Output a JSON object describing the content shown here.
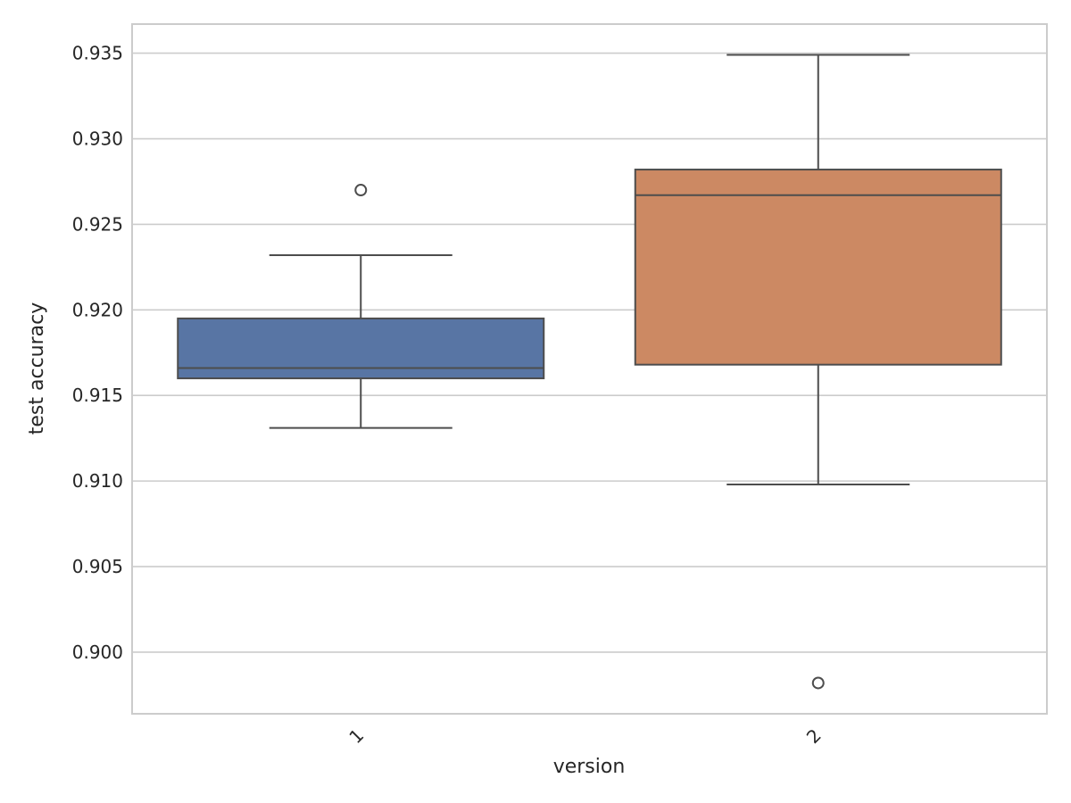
{
  "chart_data": {
    "type": "box",
    "title": "",
    "xlabel": "version",
    "ylabel": "test accuracy",
    "categories": [
      "1",
      "2"
    ],
    "ylim": [
      0.8964,
      0.9367
    ],
    "yticks": [
      "0.900",
      "0.905",
      "0.910",
      "0.915",
      "0.920",
      "0.925",
      "0.930",
      "0.935"
    ],
    "yticks_values": [
      0.9,
      0.905,
      0.91,
      0.915,
      0.92,
      0.925,
      0.93,
      0.935
    ],
    "grid": true,
    "boxes": [
      {
        "category": "1",
        "whisker_low": 0.9131,
        "q1": 0.916,
        "median": 0.9166,
        "q3": 0.9195,
        "whisker_high": 0.9232,
        "outliers": [
          0.927
        ],
        "color": "#5875a4"
      },
      {
        "category": "2",
        "whisker_low": 0.9098,
        "q1": 0.9168,
        "median": 0.9267,
        "q3": 0.9282,
        "whisker_high": 0.9349,
        "outliers": [
          0.8982
        ],
        "color": "#cc8963"
      }
    ]
  }
}
